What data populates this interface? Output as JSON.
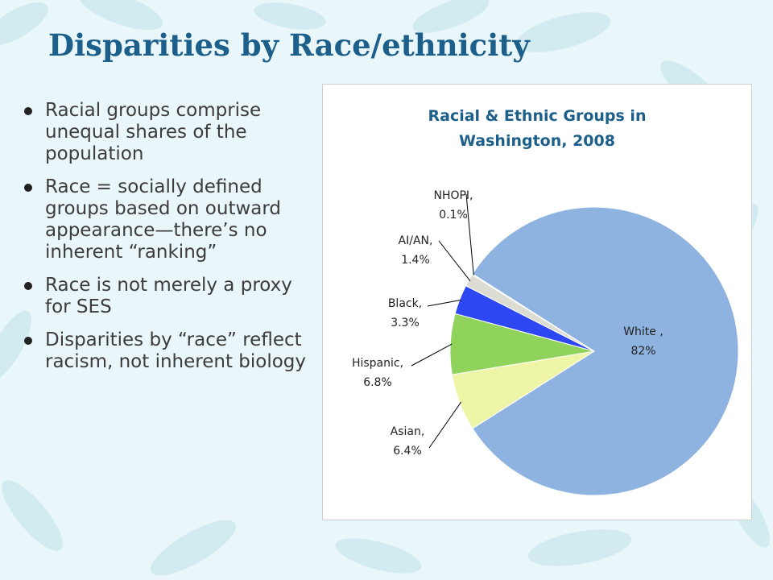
{
  "slide": {
    "title": "Disparities by Race/ethnicity",
    "bullets": [
      "Racial groups comprise unequal shares of the population",
      "Race = socially defined groups based on outward appearance—there’s no inherent “ranking”",
      "Race is not merely a proxy for SES",
      "Disparities by “race” reflect racism, not inherent biology"
    ]
  },
  "colors": {
    "title": "#1b5f8a",
    "background": "#e9f6fa",
    "leaf": "#bfe2ea"
  },
  "chart_data": {
    "type": "pie",
    "title_lines": [
      "Racial & Ethnic Groups in",
      "Washington, 2008"
    ],
    "slices": [
      {
        "name": "White",
        "label_line1": "White ,",
        "label_line2": "82%",
        "value": 82,
        "color": "#8fb3e0"
      },
      {
        "name": "Asian",
        "label_line1": "Asian,",
        "label_line2": "6.4%",
        "value": 6.4,
        "color": "#eef5a7"
      },
      {
        "name": "Hispanic",
        "label_line1": "Hispanic,",
        "label_line2": "6.8%",
        "value": 6.8,
        "color": "#8fd35b"
      },
      {
        "name": "Black",
        "label_line1": "Black,",
        "label_line2": "3.3%",
        "value": 3.3,
        "color": "#2d47f2"
      },
      {
        "name": "AI/AN",
        "label_line1": "AI/AN,",
        "label_line2": "1.4%",
        "value": 1.4,
        "color": "#dcdcd2"
      },
      {
        "name": "NHOPI",
        "label_line1": "NHOPI,",
        "label_line2": "0.1%",
        "value": 0.1,
        "color": "#c9c9c9"
      }
    ],
    "legend": "none"
  }
}
